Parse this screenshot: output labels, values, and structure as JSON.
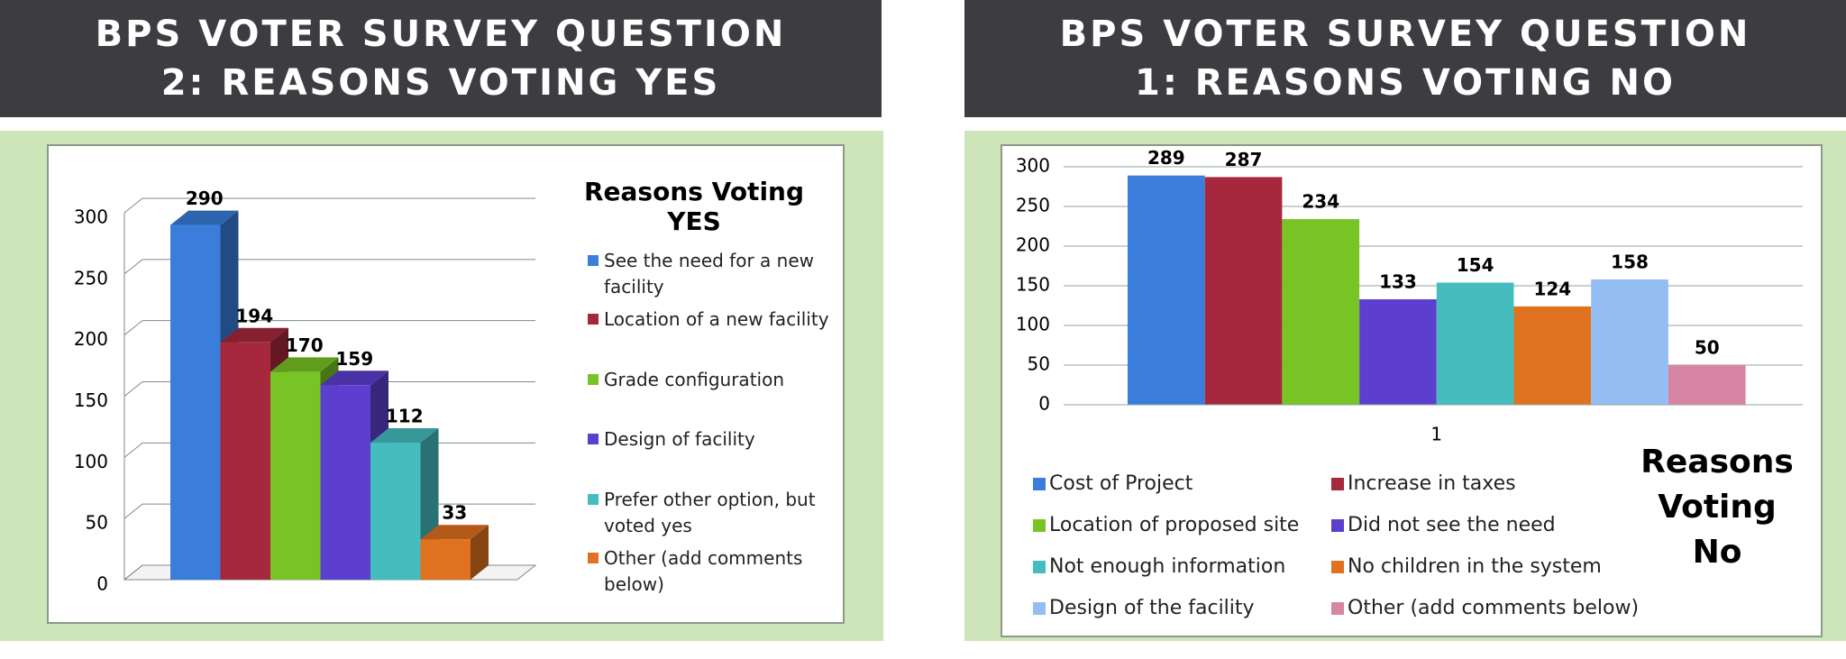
{
  "chart_data": [
    {
      "type": "bar3d",
      "title": "BPS VOTER SURVEY QUESTION 2: REASONS VOTING YES",
      "legend_title": "Reasons Voting YES",
      "categories": [
        "See the need for a new facility",
        "Location of a new facility",
        "Grade configuration",
        "Design of facility",
        "Prefer other option, but voted yes",
        "Other (add comments below)"
      ],
      "values": [
        290,
        194,
        170,
        159,
        112,
        33
      ],
      "colors": [
        "#3a7ddb",
        "#a6283c",
        "#78c424",
        "#5d3fcf",
        "#45bdbf",
        "#e0711f"
      ],
      "ylim": [
        0,
        300
      ],
      "yticks": [
        0,
        50,
        100,
        150,
        200,
        250,
        300
      ],
      "grid": true,
      "legend": "right"
    },
    {
      "type": "bar",
      "title": "BPS VOTER SURVEY QUESTION 1: REASONS VOTING NO",
      "legend_title": "Reasons Voting No",
      "categories": [
        "1"
      ],
      "series": [
        {
          "name": "Cost of Project",
          "color": "#3a7ddb",
          "values": [
            289
          ]
        },
        {
          "name": "Increase in taxes",
          "color": "#a6283c",
          "values": [
            287
          ]
        },
        {
          "name": "Location of proposed site",
          "color": "#78c424",
          "values": [
            234
          ]
        },
        {
          "name": "Did not see the need",
          "color": "#5d3fcf",
          "values": [
            133
          ]
        },
        {
          "name": "Not enough information",
          "color": "#45bdbf",
          "values": [
            154
          ]
        },
        {
          "name": "No children in the system",
          "color": "#e0711f",
          "values": [
            124
          ]
        },
        {
          "name": "Design of the facility",
          "color": "#94bdf3",
          "values": [
            158
          ]
        },
        {
          "name": "Other (add comments below)",
          "color": "#d885a5",
          "values": [
            50
          ]
        }
      ],
      "ylim": [
        0,
        300
      ],
      "yticks": [
        0,
        50,
        100,
        150,
        200,
        250,
        300
      ],
      "grid": true,
      "legend": "bottom"
    }
  ]
}
